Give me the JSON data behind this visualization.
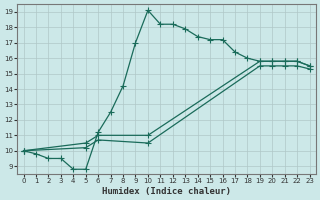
{
  "xlabel": "Humidex (Indice chaleur)",
  "bg_color": "#cce8e8",
  "grid_color": "#b0c8c8",
  "line_color": "#1a6b5a",
  "xlim": [
    -0.5,
    23.5
  ],
  "ylim": [
    8.5,
    19.5
  ],
  "xticks": [
    0,
    1,
    2,
    3,
    4,
    5,
    6,
    7,
    8,
    9,
    10,
    11,
    12,
    13,
    14,
    15,
    16,
    17,
    18,
    19,
    20,
    21,
    22,
    23
  ],
  "yticks": [
    9,
    10,
    11,
    12,
    13,
    14,
    15,
    16,
    17,
    18,
    19
  ],
  "series": [
    {
      "x": [
        0,
        1,
        2,
        3,
        4,
        5,
        6,
        7,
        8,
        9,
        10,
        11,
        12,
        13,
        14,
        15,
        16,
        17,
        18,
        19,
        20,
        21,
        22,
        23
      ],
      "y": [
        10.0,
        9.8,
        9.5,
        9.5,
        8.8,
        8.8,
        11.2,
        12.5,
        14.2,
        17.0,
        19.1,
        18.2,
        18.2,
        17.9,
        17.4,
        17.2,
        17.2,
        16.4,
        16.0,
        15.8,
        15.8,
        15.8,
        15.8,
        15.5
      ]
    },
    {
      "x": [
        0,
        5,
        6,
        10,
        19,
        20,
        21,
        22,
        23
      ],
      "y": [
        10.0,
        10.5,
        11.0,
        11.0,
        15.8,
        15.8,
        15.8,
        15.8,
        15.5
      ]
    },
    {
      "x": [
        0,
        5,
        6,
        10,
        19,
        20,
        21,
        22,
        23
      ],
      "y": [
        10.0,
        10.2,
        10.7,
        10.5,
        15.5,
        15.5,
        15.5,
        15.5,
        15.3
      ]
    }
  ]
}
